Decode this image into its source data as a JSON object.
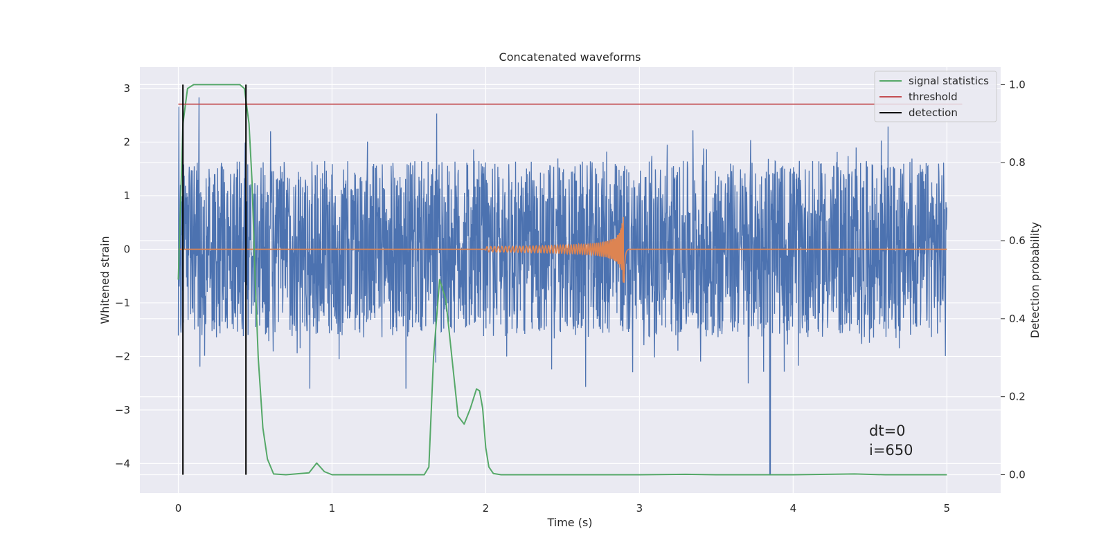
{
  "chart_data": {
    "type": "line",
    "title": "Concatenated waveforms",
    "xlabel": "Time (s)",
    "ylabel": "Whitened strain",
    "ylabel_right": "Detection probability",
    "xlim": [
      -0.25,
      5.35
    ],
    "ylim": [
      -4.55,
      3.4
    ],
    "ylim_right": [
      -0.047,
      1.045
    ],
    "x_ticks": [
      "0",
      "1",
      "2",
      "3",
      "4",
      "5"
    ],
    "x_tick_values": [
      0,
      1,
      2,
      3,
      4,
      5
    ],
    "y_ticks": [
      "3",
      "2",
      "1",
      "0",
      "−1",
      "−2",
      "−3",
      "−4"
    ],
    "y_tick_values": [
      3,
      2,
      1,
      0,
      -1,
      -2,
      -3,
      -4
    ],
    "y2_ticks": [
      "1.0",
      "0.8",
      "0.6",
      "0.4",
      "0.2",
      "0.0"
    ],
    "y2_tick_values": [
      1.0,
      0.8,
      0.6,
      0.4,
      0.2,
      0.0
    ],
    "grid": true,
    "legend_position": "top-right",
    "series": [
      {
        "key": "strain",
        "axis": "left",
        "color": "#4c72b0",
        "description": "noisy whitened strain, roughly -2.5 to 2.8 over 0–5 s, outliers to 3.05 and -4.2 near 3.85 s",
        "x_range": [
          0,
          5
        ],
        "typical_min": -2.0,
        "typical_max": 2.2
      },
      {
        "key": "injection",
        "axis": "left",
        "color": "#dd8452",
        "description": "chirp signal, zero except oscillation from 2.0 s growing to about ±0.7 at 2.9 s",
        "x_range": [
          0,
          5
        ],
        "chirp_start": 2.0,
        "chirp_merger": 2.9,
        "chirp_peak": 0.7
      },
      {
        "name": "signal statistics",
        "axis": "right",
        "color": "#55a868",
        "x": [
          0.0,
          0.03,
          0.06,
          0.1,
          0.2,
          0.4,
          0.43,
          0.46,
          0.48,
          0.5,
          0.52,
          0.55,
          0.58,
          0.62,
          0.7,
          0.85,
          0.9,
          0.95,
          1.0,
          1.6,
          1.63,
          1.66,
          1.7,
          1.74,
          1.78,
          1.82,
          1.86,
          1.9,
          1.94,
          1.96,
          1.98,
          2.0,
          2.02,
          2.05,
          2.1,
          3.0,
          3.3,
          3.5,
          4.0,
          4.4,
          4.6,
          5.0
        ],
        "y": [
          0.5,
          0.9,
          0.99,
          1.0,
          1.0,
          1.0,
          0.99,
          0.9,
          0.75,
          0.5,
          0.3,
          0.12,
          0.04,
          0.002,
          0.0,
          0.005,
          0.03,
          0.008,
          0.0,
          0.0,
          0.02,
          0.3,
          0.5,
          0.45,
          0.3,
          0.15,
          0.13,
          0.17,
          0.22,
          0.215,
          0.17,
          0.07,
          0.02,
          0.003,
          0.0,
          0.0,
          0.001,
          0.0,
          0.0,
          0.002,
          0.0,
          0.0
        ]
      },
      {
        "name": "threshold",
        "axis": "right",
        "color": "#c44e52",
        "x": [
          0,
          5.1
        ],
        "y": [
          0.95,
          0.95
        ]
      },
      {
        "name": "detection",
        "axis": "right",
        "color": "#000000",
        "x": [
          0.03,
          0.44
        ],
        "y_from": 0.0,
        "y_to": 1.0
      }
    ],
    "annotations": [
      "dt=0",
      "i=650"
    ]
  }
}
